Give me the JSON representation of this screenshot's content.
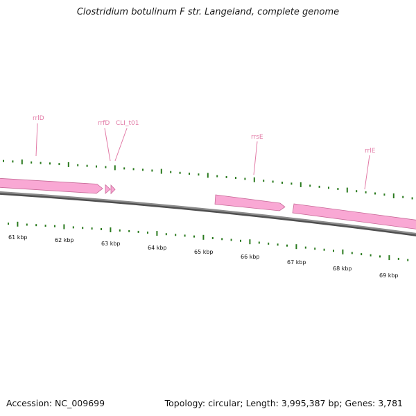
{
  "title": "Clostridium botulinum F str. Langeland, complete genome",
  "footer": {
    "accession": "Accession: NC_009699",
    "summary": "Topology: circular; Length: 3,995,387 bp; Genes: 3,781"
  },
  "colors": {
    "backbone": "#808080",
    "feature_fill": "#f9a8d4",
    "feature_edge": "#c86a98",
    "tick": "#2a7a1e",
    "label_pink": "#e27aa6"
  },
  "scale_labels": [
    "61 kbp",
    "62 kbp",
    "63 kbp",
    "64 kbp",
    "65 kbp",
    "66 kbp",
    "67 kbp",
    "68 kbp",
    "69 kbp"
  ],
  "gene_labels": [
    "rrlD",
    "rrfD",
    "CLI_t01",
    "rrsE",
    "rrlE"
  ]
}
